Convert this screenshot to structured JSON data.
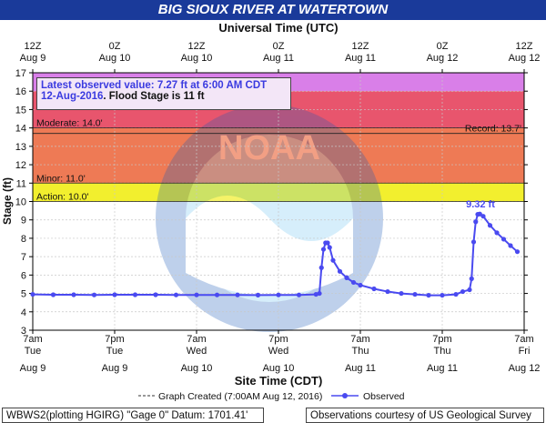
{
  "title": "BIG SIOUX RIVER AT WATERTOWN",
  "top_axis_title": "Universal Time (UTC)",
  "bottom_axis_title": "Site Time (CDT)",
  "colors": {
    "title_bg": "#1a3a9a",
    "record_band": "#d97fe8",
    "major_band": "#e8556d",
    "moderate_band": "#ee7a55",
    "minor_band": "#f5b24a",
    "action_band": "#f2ef2e",
    "series": "#4a4af0",
    "info_text": "#3a3ae0"
  },
  "info_box": {
    "line1": "Latest observed value: 7.27 ft at 6:00 AM CDT",
    "date": "12-Aug-2016",
    "flood_text": ". Flood Stage is 11 ft"
  },
  "footer": {
    "left": "WBWS2(plotting HGIRG) \"Gage 0\" Datum: 1701.41'",
    "legend_created": "Graph Created (7:00AM Aug 12, 2016)",
    "legend_observed": "Observed",
    "right": "Observations courtesy of US Geological Survey"
  },
  "chart_data": {
    "type": "line",
    "title": "BIG SIOUX RIVER AT WATERTOWN",
    "ylabel": "Stage (ft)",
    "xlabel": "Site Time (CDT)",
    "x_top_label": "Universal Time (UTC)",
    "x_unit": "hours since Aug 9 7am CDT",
    "xlim": [
      0,
      72
    ],
    "ylim": [
      3,
      17
    ],
    "y_ticks": [
      3,
      4,
      5,
      6,
      7,
      8,
      9,
      10,
      11,
      12,
      13,
      14,
      15,
      16,
      17
    ],
    "x_ticks_bottom": [
      {
        "h": 0,
        "time": "7am",
        "day": "Tue",
        "date": "Aug 9"
      },
      {
        "h": 12,
        "time": "7pm",
        "day": "Tue",
        "date": "Aug 9"
      },
      {
        "h": 24,
        "time": "7am",
        "day": "Wed",
        "date": "Aug 10"
      },
      {
        "h": 36,
        "time": "7pm",
        "day": "Wed",
        "date": "Aug 10"
      },
      {
        "h": 48,
        "time": "7am",
        "day": "Thu",
        "date": "Aug 11"
      },
      {
        "h": 60,
        "time": "7pm",
        "day": "Thu",
        "date": "Aug 11"
      },
      {
        "h": 72,
        "time": "7am",
        "day": "Fri",
        "date": "Aug 12"
      }
    ],
    "x_ticks_top": [
      {
        "h": 0,
        "time": "12Z",
        "date": "Aug 9"
      },
      {
        "h": 12,
        "time": "0Z",
        "date": "Aug 10"
      },
      {
        "h": 24,
        "time": "12Z",
        "date": "Aug 10"
      },
      {
        "h": 36,
        "time": "0Z",
        "date": "Aug 11"
      },
      {
        "h": 48,
        "time": "12Z",
        "date": "Aug 11"
      },
      {
        "h": 60,
        "time": "0Z",
        "date": "Aug 12"
      },
      {
        "h": 72,
        "time": "12Z",
        "date": "Aug 12"
      }
    ],
    "bands": [
      {
        "name": "record",
        "from": 16,
        "to": 17,
        "color": "#d97fe8"
      },
      {
        "name": "major",
        "from": 14,
        "to": 16,
        "color": "#e8556d"
      },
      {
        "name": "moderate",
        "from": 11,
        "to": 14,
        "color": "#ee7a55"
      },
      {
        "name": "minor",
        "from": 10,
        "to": 11,
        "color": "#f5b24a"
      },
      {
        "name": "action",
        "from": 10,
        "to": 11,
        "color": "#f2ef2e"
      }
    ],
    "thresholds": [
      {
        "label": "Moderate: 14.0'",
        "value": 14.0,
        "side": "left"
      },
      {
        "label": "Record: 13.7'",
        "value": 13.7,
        "side": "right"
      },
      {
        "label": "Minor: 11.0'",
        "value": 11.0,
        "side": "left"
      },
      {
        "label": "Action: 10.0'",
        "value": 10.0,
        "side": "left"
      }
    ],
    "peak_label": "9.32 ft",
    "series": [
      {
        "name": "Observed",
        "x": [
          0,
          3,
          6,
          9,
          12,
          15,
          18,
          21,
          24,
          27,
          30,
          33,
          36,
          39,
          41.5,
          42,
          42.3,
          42.6,
          42.9,
          43.2,
          43.5,
          44,
          45,
          46,
          47,
          48,
          50,
          52,
          54,
          56,
          58,
          60,
          62,
          63,
          64,
          64.3,
          64.6,
          64.9,
          65.2,
          65.5,
          66,
          67,
          68,
          69,
          70,
          71
        ],
        "y": [
          4.95,
          4.93,
          4.93,
          4.92,
          4.93,
          4.93,
          4.93,
          4.92,
          4.92,
          4.92,
          4.92,
          4.91,
          4.92,
          4.92,
          4.95,
          5.0,
          6.4,
          7.4,
          7.75,
          7.75,
          7.5,
          6.8,
          6.2,
          5.85,
          5.6,
          5.45,
          5.25,
          5.1,
          5.0,
          4.95,
          4.9,
          4.9,
          4.95,
          5.1,
          5.2,
          5.8,
          7.8,
          8.9,
          9.3,
          9.32,
          9.2,
          8.7,
          8.3,
          7.95,
          7.6,
          7.27
        ]
      }
    ]
  }
}
